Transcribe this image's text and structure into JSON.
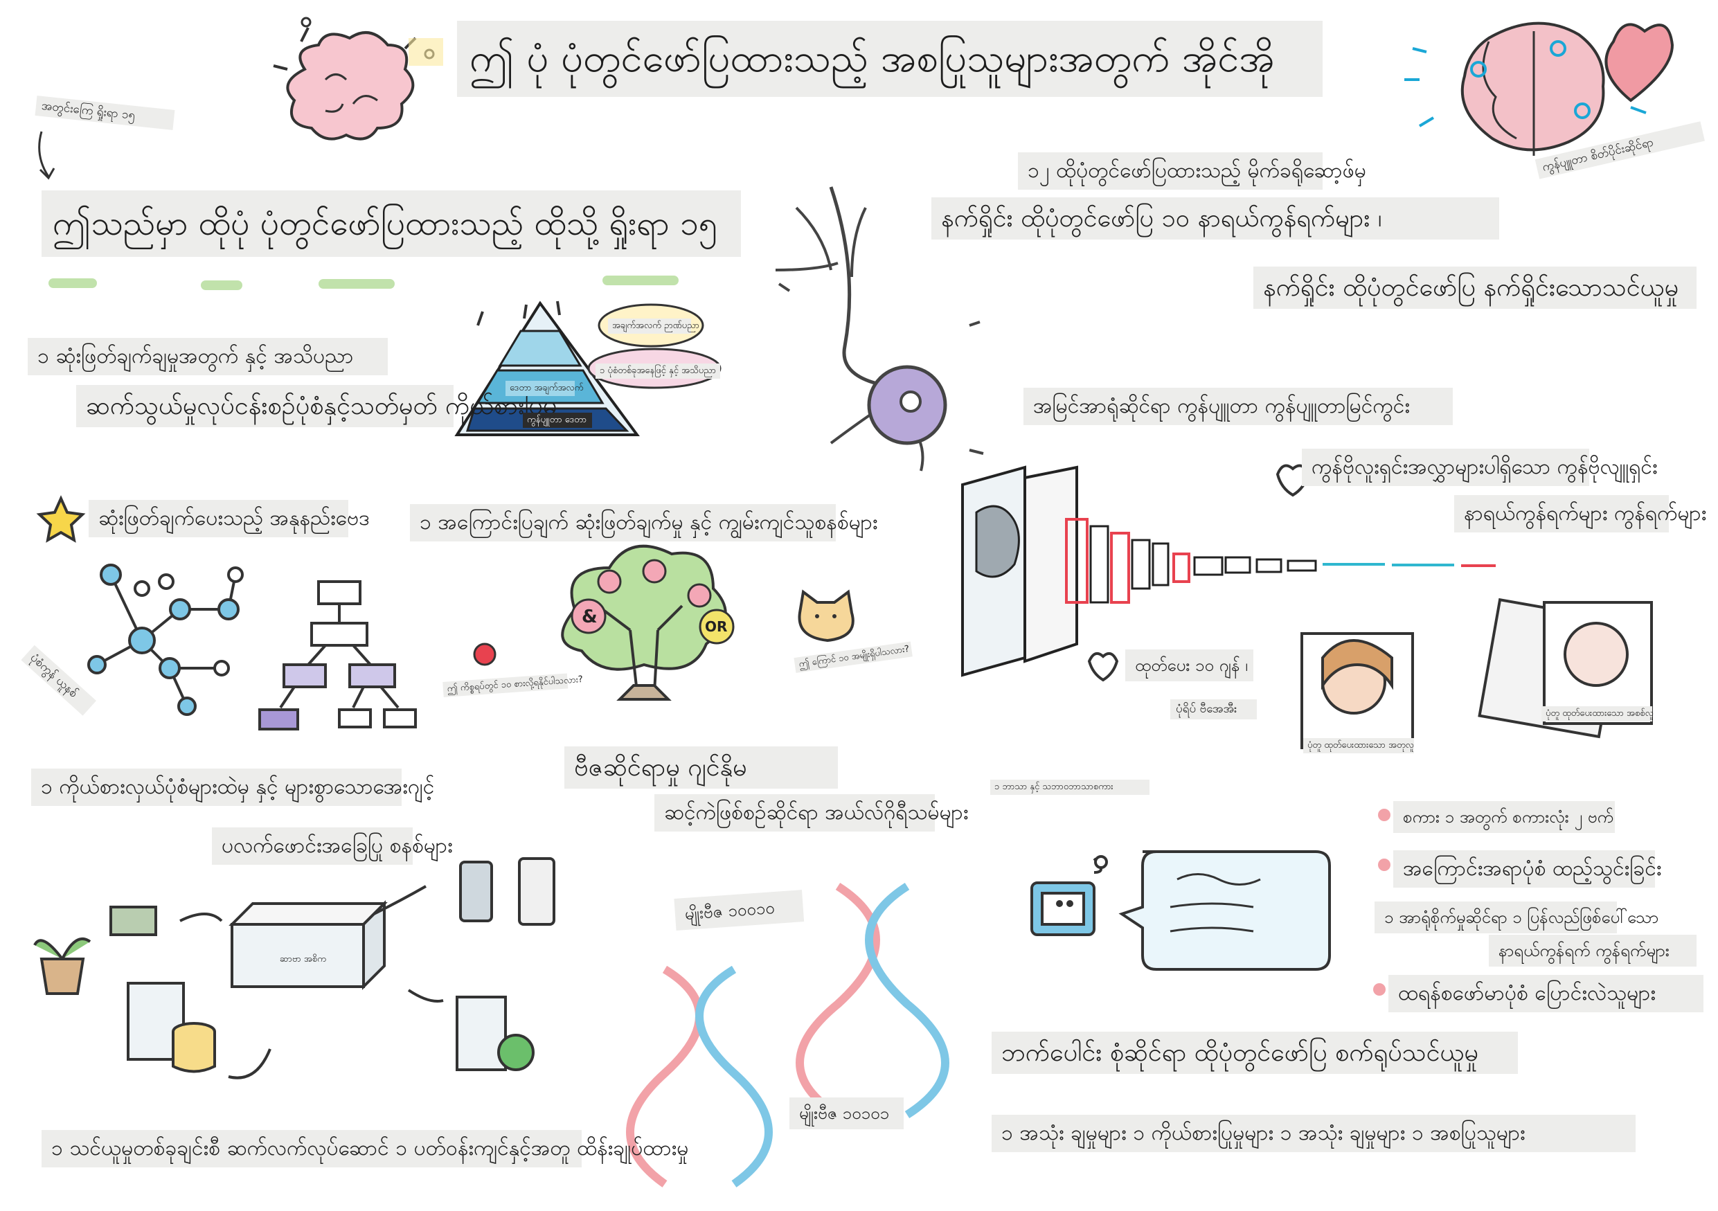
{
  "title": "ဤ ပုံ ပုံတွင်ဖော်ပြထားသည့် အစပြုသူများအတွက် အိုင်အို",
  "top_left_note": "အတွင်းကြေ ရှိုးရာ ၁၅",
  "right_note": "ကွန်ပျူတာ စိတ်ပိုင်းဆိုင်ရာ",
  "section_1": {
    "heading": "ဤသည်မှာ ထိုပုံ ပုံတွင်ဖော်ပြထားသည့် ထိုသို့ ရှိုးရာ ၁၅",
    "item_1": "၁ ဆုံးဖြတ်ချက်ချမှုအတွက် နှင့် အသိပညာ",
    "item_2": "ဆက်သွယ်မှုလုပ်ငန်းစဉ်ပုံစံနှင့်သတ်မှတ် ကိုယ်စားပြုမှု",
    "item_3": "ဆုံးဖြတ်ချက်ပေးသည့် အနုနည်းဗေဒ",
    "item_4": "၁ အကြောင်းပြချက် ဆုံးဖြတ်ချက်မှု နှင့် ကျွမ်းကျင်သူစနစ်များ",
    "item_5": "၁ ကိုယ်စားလှယ်ပုံစံများထဲမှ နှင့် များစွာသောအေးဂျင့်",
    "item_6": "ပလက်ဖောင်းအခြေပြု စနစ်များ",
    "item_7": "၁ သင်ယူမှုတစ်ခုချင်းစီ ဆက်လက်လုပ်ဆောင် ၁ ပတ်ဝန်းကျင်နှင့်အတူ ထိန်းချုပ်ထားမှု",
    "side_label": "ပုံစံကွန် ယူနစ်",
    "pyramid_wisdom": "အချက်အလက် ဉာဏ်ပညာ",
    "pyramid_knowledge": "၁ ပုံစံတစ်ခုအနေဖြင့် နှင့် အသိပညာ",
    "pyramid_info": "ဒေတာ အချက်အလက်",
    "pyramid_data": "ကွန်ပျူတာ ဒေတာ",
    "tree_question": "ဤ ကိစ္စရပ်တွင် ၁၀ စားလို့ရနိုင်ပါသလား?",
    "cat_question": "ဤ ကြောင် ၁၀ အမျိုးရှိပါသလား?",
    "server_label": "ဆာဗာ အစိက",
    "tree_and": "&",
    "tree_or": "OR"
  },
  "genetic": {
    "heading": "ဗီဇဆိုင်ရာမှု ဂျင်နိုမ",
    "subheading": "ဆင့်ကဲဖြစ်စဉ်ဆိုင်ရာ အယ်လ်ဂိုရီသမ်များ",
    "dna_1": "မျိုးဗီဇ ၁၀၀၁၀",
    "dna_2": "မျိုးဗီဇ ၁၀၁၀၁"
  },
  "section_2": {
    "intro": "၁၂ ထိုပုံတွင်ဖော်ပြထားသည့် မိုက်ခရိုဆော့ဖ်မှ",
    "heading_a": "နက်ရှိုင်း ထိုပုံတွင်ဖော်ပြ ၁၀ နာရယ်ကွန်ရက်များ ၊",
    "heading_b": "နက်ရှိုင်း ထိုပုံတွင်ဖော်ပြ နက်ရှိုင်းသောသင်ယူမှု",
    "cv": "အမြင်အာရုံဆိုင်ရာ ကွန်ပျူတာ ကွန်ပျူတာမြင်ကွင်း",
    "cnn_a": "ကွန်ဗိုလူးရှင်းအလွှာများပါရှိသော ကွန်ဗိုလျူရှင်း",
    "cnn_b": "နာရယ်ကွန်ရက်များ ကွန်ရက်များ",
    "gan_a": "ထုတ်ပေး ၁၀ ဂျန် ၊",
    "gan_b": "ပုံရိပ် ဗီအေအီး",
    "photo_1": "ပုံတူ ထုတ်ပေးထားသော အတုလူ",
    "photo_2": "ပုံတူ ထုတ်ပေးထားသော အစစ်လူ",
    "nlp_label": "၁ ဘာသာ နှင့် သဘာဝဘာသာစကား",
    "nlp_1": "စကား ၁ အတွက် စကားလုံး ၂ ဗက်",
    "nlp_2": "အကြောင်းအရာပုံစံ ထည့်သွင်းခြင်း",
    "nlp_3": "၁ အာရုံစိုက်မှုဆိုင်ရာ ၁ ပြန်လည်ဖြစ်ပေါ်သော",
    "nlp_4": "နာရယ်ကွန်ရက် ကွန်ရက်များ",
    "nlp_5": "ထရန်စဖော်မာပုံစံ ပြောင်းလဲသူများ",
    "heading_c": "ဘက်ပေါင်း စုံဆိုင်ရာ ထိုပုံတွင်ဖော်ပြ စက်ရုပ်သင်ယူမှု",
    "footer": "၁ အသုံး ချမှုများ ၁ ကိုယ်စားပြုမှုများ ၁ အသုံး ချမှုများ ၁ အစပြုသူများ"
  },
  "colors": {
    "label_bg": "#ededeb",
    "underline": "#b6dd9c",
    "neuron": "#b7a8d8",
    "cnn_accent": "#e8424f",
    "cnn_tail": "#2fb7cf"
  }
}
